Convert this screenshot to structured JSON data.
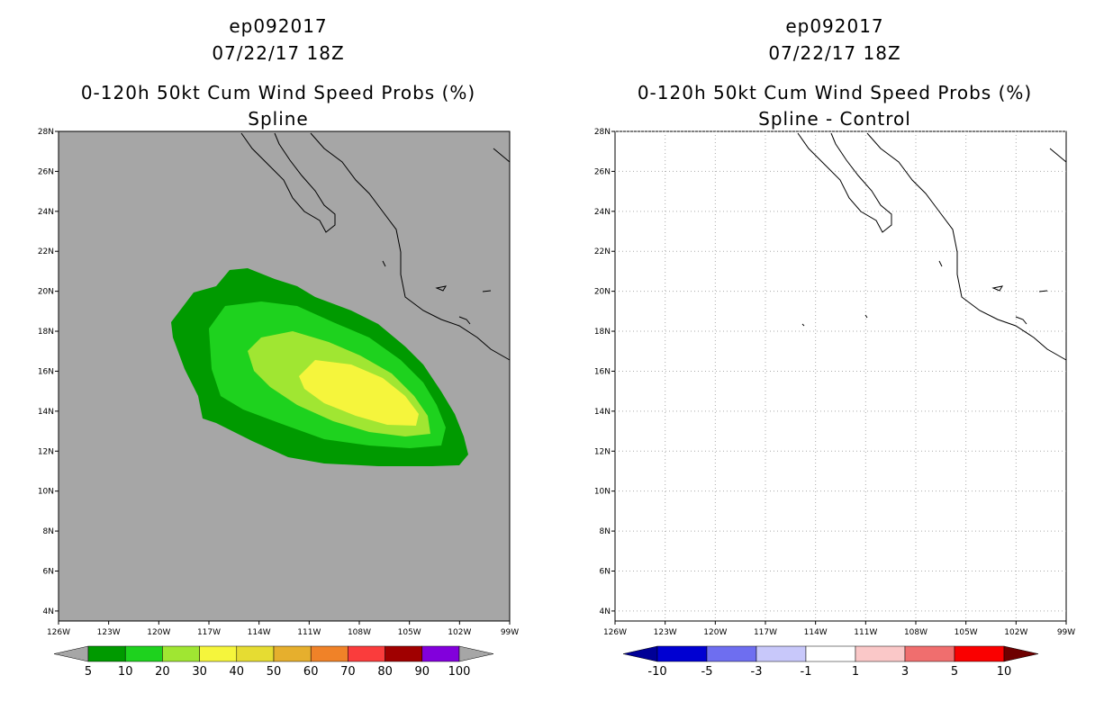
{
  "panels": [
    {
      "title_lines": [
        "ep092017",
        "07/22/17 18Z",
        "0-120h 50kt Cum Wind Speed Probs (%)",
        "Spline"
      ],
      "colorbar": {
        "labels": [
          "5",
          "10",
          "20",
          "30",
          "40",
          "50",
          "60",
          "70",
          "80",
          "90",
          "100"
        ],
        "colors": [
          "#009a00",
          "#1ed21e",
          "#a0e632",
          "#f5f53c",
          "#e6dc32",
          "#e6af2d",
          "#f08228",
          "#fa3c3c",
          "#a00000",
          "#8200dc"
        ],
        "under_color": "#a6a6a6",
        "over_color": "#a6a6a6"
      }
    },
    {
      "title_lines": [
        "ep092017",
        "07/22/17 18Z",
        "0-120h 50kt Cum Wind Speed Probs (%)",
        "Spline - Control"
      ],
      "colorbar": {
        "labels": [
          "-10",
          "-5",
          "-3",
          "-1",
          "1",
          "3",
          "5",
          "10"
        ],
        "colors": [
          "#0000d2",
          "#6e6ef0",
          "#c8c8fa",
          "#ffffff",
          "#fac8c8",
          "#f06e6e",
          "#fa0000"
        ],
        "under_color": "#000096",
        "over_color": "#6e0000"
      }
    }
  ],
  "map": {
    "lon_labels": [
      "126W",
      "123W",
      "120W",
      "117W",
      "114W",
      "111W",
      "108W",
      "105W",
      "102W",
      "99W"
    ],
    "lat_labels": [
      "4N",
      "6N",
      "8N",
      "10N",
      "12N",
      "14N",
      "16N",
      "18N",
      "20N",
      "22N",
      "24N",
      "26N",
      "28N"
    ],
    "left_background": "#a6a6a6",
    "right_background": "#ffffff",
    "gridlines_right": true
  }
}
